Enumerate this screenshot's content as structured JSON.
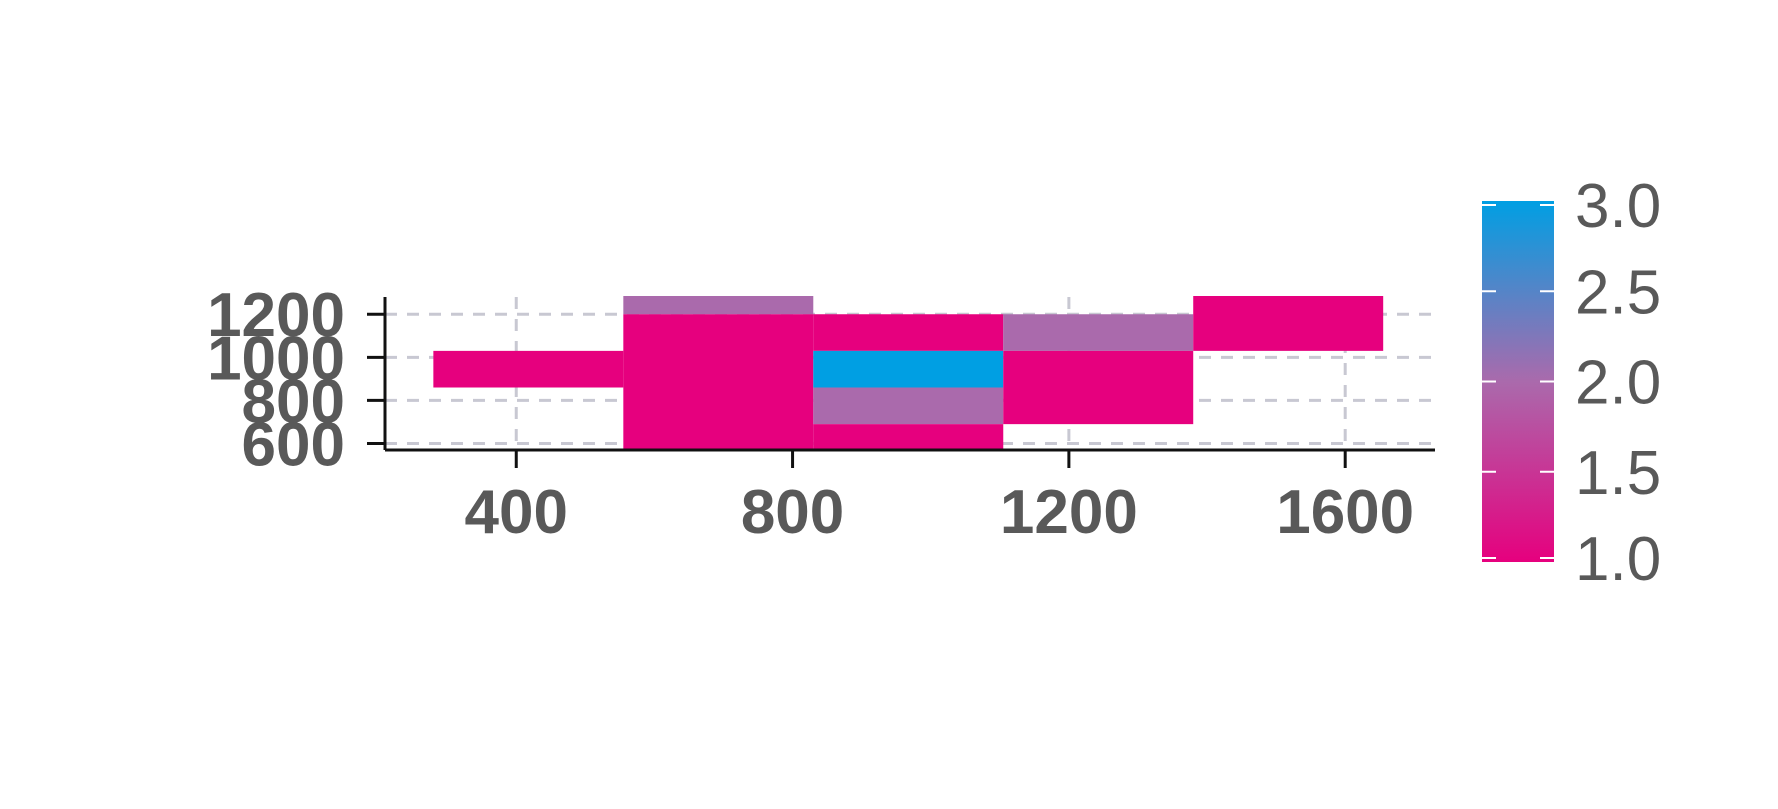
{
  "chart_data": {
    "type": "heatmap",
    "title": "",
    "xlabel": "",
    "ylabel": "",
    "xlim": [
      210,
      1730
    ],
    "ylim": [
      570,
      1280
    ],
    "x_ticks": [
      400,
      800,
      1200,
      1600
    ],
    "y_ticks": [
      600,
      800,
      1000,
      1200
    ],
    "grid": true,
    "cells": [
      {
        "x0": 280,
        "x1": 555,
        "y0": 860,
        "y1": 1030,
        "value": 1.0
      },
      {
        "x0": 555,
        "x1": 830,
        "y0": 1200,
        "y1": 1360,
        "value": 2.0
      },
      {
        "x0": 555,
        "x1": 830,
        "y0": 520,
        "y1": 1200,
        "value": 1.0
      },
      {
        "x0": 830,
        "x1": 1105,
        "y0": 1030,
        "y1": 1200,
        "value": 1.0
      },
      {
        "x0": 830,
        "x1": 1105,
        "y0": 860,
        "y1": 1030,
        "value": 3.0
      },
      {
        "x0": 830,
        "x1": 1105,
        "y0": 690,
        "y1": 860,
        "value": 2.0
      },
      {
        "x0": 830,
        "x1": 1105,
        "y0": 520,
        "y1": 690,
        "value": 1.0
      },
      {
        "x0": 1105,
        "x1": 1380,
        "y0": 1030,
        "y1": 1200,
        "value": 2.0
      },
      {
        "x0": 1105,
        "x1": 1380,
        "y0": 690,
        "y1": 1030,
        "value": 1.0
      },
      {
        "x0": 1380,
        "x1": 1655,
        "y0": 1030,
        "y1": 1360,
        "value": 1.0
      }
    ],
    "colorbar": {
      "min": 1.0,
      "max": 3.0,
      "ticks": [
        "1.0",
        "1.5",
        "2.0",
        "2.5",
        "3.0"
      ],
      "colors": [
        "#e6007e",
        "#aa6aac",
        "#009fe3"
      ]
    },
    "colors": {
      "axis": "#111111",
      "grid": "#c8c8d2",
      "tick_text": "#595959"
    }
  }
}
